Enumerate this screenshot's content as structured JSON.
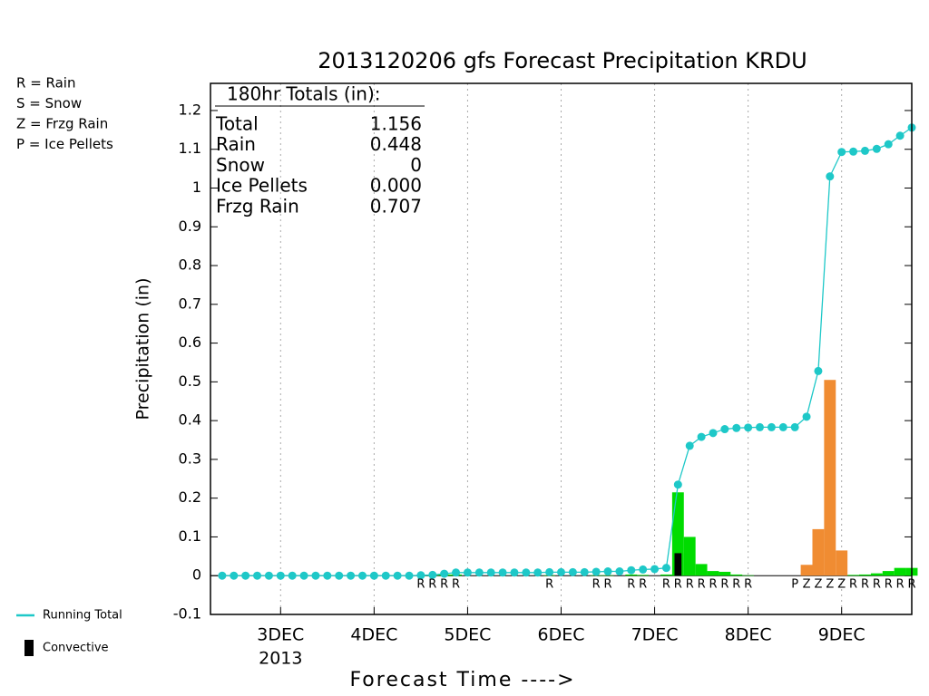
{
  "chart_data": {
    "type": "line",
    "title": "2013120206 gfs Forecast Precipitation KRDU",
    "y_label": "Precipitation (in)",
    "x_label": "Forecast Time ---->",
    "x_year_label": "2013",
    "xlim": [
      0,
      180
    ],
    "ylim": [
      -0.1,
      1.27
    ],
    "xticks": [
      {
        "value": 18,
        "label": "3DEC"
      },
      {
        "value": 42,
        "label": "4DEC"
      },
      {
        "value": 66,
        "label": "5DEC"
      },
      {
        "value": 90,
        "label": "6DEC"
      },
      {
        "value": 114,
        "label": "7DEC"
      },
      {
        "value": 138,
        "label": "8DEC"
      },
      {
        "value": 162,
        "label": "9DEC"
      }
    ],
    "yticks": [
      -0.1,
      0,
      0.1,
      0.2,
      0.3,
      0.4,
      0.5,
      0.6,
      0.7,
      0.8,
      0.9,
      1,
      1.1,
      1.2
    ],
    "grid": "x-dotted",
    "x": [
      3,
      6,
      9,
      12,
      15,
      18,
      21,
      24,
      27,
      30,
      33,
      36,
      39,
      42,
      45,
      48,
      51,
      54,
      57,
      60,
      63,
      66,
      69,
      72,
      75,
      78,
      81,
      84,
      87,
      90,
      93,
      96,
      99,
      102,
      105,
      108,
      111,
      114,
      117,
      120,
      123,
      126,
      129,
      132,
      135,
      138,
      141,
      144,
      147,
      150,
      153,
      156,
      159,
      162,
      165,
      168,
      171,
      174,
      177,
      180
    ],
    "series": [
      {
        "name": "Running Total",
        "type": "line",
        "color": "#1ec8c8",
        "legend": true,
        "values": [
          0,
          0,
          0,
          0,
          0,
          0,
          0,
          0,
          0,
          0,
          0,
          0,
          0,
          0,
          0,
          0,
          0,
          0.001,
          0.002,
          0.005,
          0.008,
          0.008,
          0.008,
          0.008,
          0.008,
          0.008,
          0.008,
          0.008,
          0.009,
          0.009,
          0.009,
          0.009,
          0.01,
          0.011,
          0.011,
          0.014,
          0.016,
          0.017,
          0.02,
          0.235,
          0.335,
          0.358,
          0.368,
          0.378,
          0.381,
          0.382,
          0.383,
          0.383,
          0.383,
          0.383,
          0.41,
          0.528,
          1.03,
          1.093,
          1.094,
          1.096,
          1.101,
          1.113,
          1.135,
          1.156
        ]
      },
      {
        "name": "Rain",
        "type": "bar",
        "color": "#00dc00",
        "legend": false,
        "values": [
          null,
          null,
          null,
          null,
          null,
          null,
          null,
          null,
          null,
          null,
          null,
          null,
          null,
          null,
          null,
          null,
          null,
          0.001,
          0.001,
          0.003,
          0.003,
          null,
          null,
          null,
          null,
          null,
          null,
          null,
          0.001,
          null,
          null,
          null,
          0.001,
          0.001,
          null,
          0.003,
          0.002,
          null,
          0.003,
          0.215,
          0.1,
          0.03,
          0.012,
          0.01,
          0.003,
          0.001,
          null,
          null,
          null,
          null,
          null,
          null,
          null,
          null,
          0.002,
          0.003,
          0.006,
          0.012,
          0.02,
          0.02
        ]
      },
      {
        "name": "Frzg Rain",
        "type": "bar",
        "color": "#f08c32",
        "legend": false,
        "values": [
          null,
          null,
          null,
          null,
          null,
          null,
          null,
          null,
          null,
          null,
          null,
          null,
          null,
          null,
          null,
          null,
          null,
          null,
          null,
          null,
          null,
          null,
          null,
          null,
          null,
          null,
          null,
          null,
          null,
          null,
          null,
          null,
          null,
          null,
          null,
          null,
          null,
          null,
          null,
          null,
          null,
          null,
          null,
          null,
          null,
          null,
          null,
          null,
          null,
          null,
          0.028,
          0.12,
          0.505,
          0.065,
          null,
          null,
          null,
          null,
          null,
          null
        ]
      },
      {
        "name": "Convective",
        "type": "bar",
        "color": "#000000",
        "legend": true,
        "narrow": true,
        "values": [
          null,
          null,
          null,
          null,
          null,
          null,
          null,
          null,
          null,
          null,
          null,
          null,
          null,
          null,
          null,
          null,
          null,
          null,
          null,
          null,
          null,
          null,
          null,
          null,
          null,
          null,
          null,
          null,
          null,
          null,
          null,
          null,
          null,
          null,
          null,
          null,
          null,
          null,
          null,
          0.058,
          null,
          null,
          null,
          null,
          null,
          null,
          null,
          null,
          null,
          null,
          null,
          null,
          null,
          null,
          null,
          null,
          null,
          null,
          null,
          null
        ]
      }
    ],
    "ptype_labels": [
      null,
      null,
      null,
      null,
      null,
      null,
      null,
      null,
      null,
      null,
      null,
      null,
      null,
      null,
      null,
      null,
      null,
      "R",
      "R",
      "R",
      "R",
      null,
      null,
      null,
      null,
      null,
      null,
      null,
      "R",
      null,
      null,
      null,
      "R",
      "R",
      null,
      "R",
      "R",
      null,
      "R",
      "R",
      "R",
      "R",
      "R",
      "R",
      "R",
      "R",
      null,
      null,
      null,
      "P",
      "Z",
      "Z",
      "Z",
      "Z",
      "R",
      "R",
      "R",
      "R",
      "R",
      "R"
    ],
    "type_key": [
      {
        "label": "R = Rain",
        "color": "#22c022"
      },
      {
        "label": "S = Snow",
        "color": "#3050f0"
      },
      {
        "label": "Z = Frzg Rain",
        "color": "#f08030"
      },
      {
        "label": "P = Ice Pellets",
        "color": "#e020b0"
      }
    ],
    "totals": {
      "title": "180hr Totals (in):",
      "rows": [
        [
          "Total",
          "1.156"
        ],
        [
          "Rain",
          "0.448"
        ],
        [
          "Snow",
          "0"
        ],
        [
          "Ice Pellets",
          "0.000"
        ],
        [
          "Frzg Rain",
          "0.707"
        ]
      ]
    }
  }
}
